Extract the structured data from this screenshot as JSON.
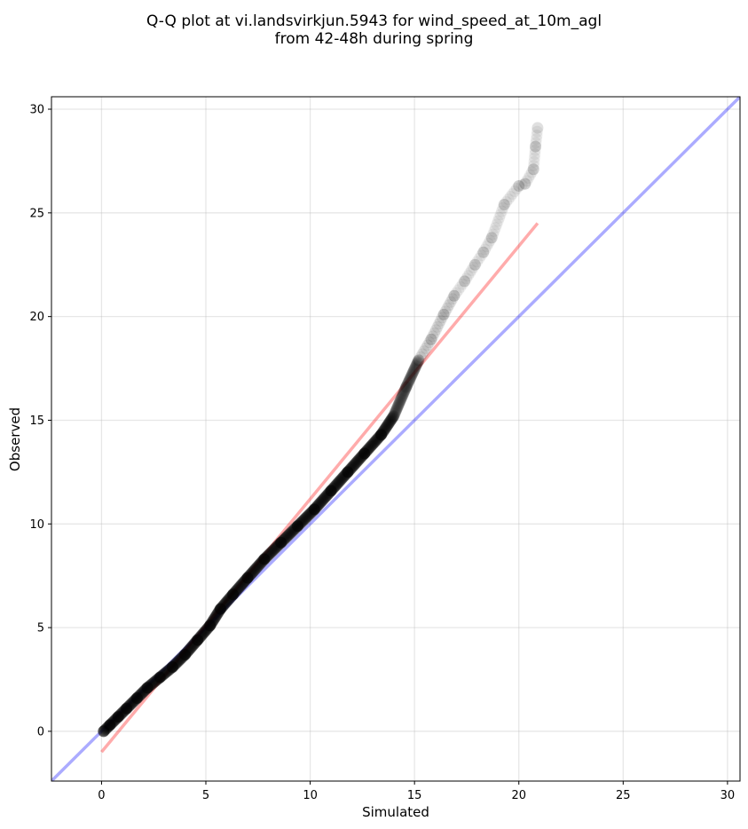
{
  "chart_data": {
    "type": "scatter",
    "title_line1": "Q-Q plot at vi.landsvirkjun.5943 for wind_speed_at_10m_agl",
    "title_line2": "from 42-48h during spring",
    "xlabel": "Simulated",
    "ylabel": "Observed",
    "xlim": [
      -2.4,
      30.6
    ],
    "ylim": [
      -2.4,
      30.6
    ],
    "xticks": [
      0,
      5,
      10,
      15,
      20,
      25,
      30
    ],
    "yticks": [
      0,
      5,
      10,
      15,
      20,
      25,
      30
    ],
    "xtick_labels": [
      "0",
      "5",
      "10",
      "15",
      "20",
      "25",
      "30"
    ],
    "ytick_labels": [
      "0",
      "5",
      "10",
      "15",
      "20",
      "25",
      "30"
    ],
    "grid": true,
    "series": [
      {
        "kind": "points",
        "color": "#000000",
        "x": [
          0.1,
          0.4,
          0.8,
          1.2,
          1.7,
          2.2,
          2.8,
          3.4,
          4.0,
          4.6,
          5.2,
          5.7,
          6.3,
          7.0,
          7.8,
          8.6,
          9.4,
          10.2,
          11.0,
          11.8,
          12.6,
          13.4,
          14.0,
          14.6,
          15.2,
          15.8,
          16.4,
          16.9,
          17.4,
          17.9,
          18.3,
          18.7,
          19.3,
          20.0,
          20.3,
          20.7,
          20.8,
          20.9
        ],
        "y": [
          0.0,
          0.3,
          0.7,
          1.1,
          1.6,
          2.1,
          2.6,
          3.1,
          3.7,
          4.4,
          5.1,
          5.9,
          6.6,
          7.4,
          8.3,
          9.1,
          9.9,
          10.7,
          11.6,
          12.5,
          13.4,
          14.3,
          15.2,
          16.6,
          17.9,
          18.9,
          20.1,
          21.0,
          21.7,
          22.5,
          23.1,
          23.8,
          25.4,
          26.3,
          26.4,
          27.1,
          28.2,
          29.1
        ]
      },
      {
        "kind": "line",
        "color": "#ff0000",
        "x": [
          0.0,
          20.9
        ],
        "y": [
          -1.0,
          24.5
        ]
      },
      {
        "kind": "line",
        "color": "#0000ff",
        "x": [
          -2.4,
          30.6
        ],
        "y": [
          -2.4,
          30.6
        ]
      }
    ]
  }
}
